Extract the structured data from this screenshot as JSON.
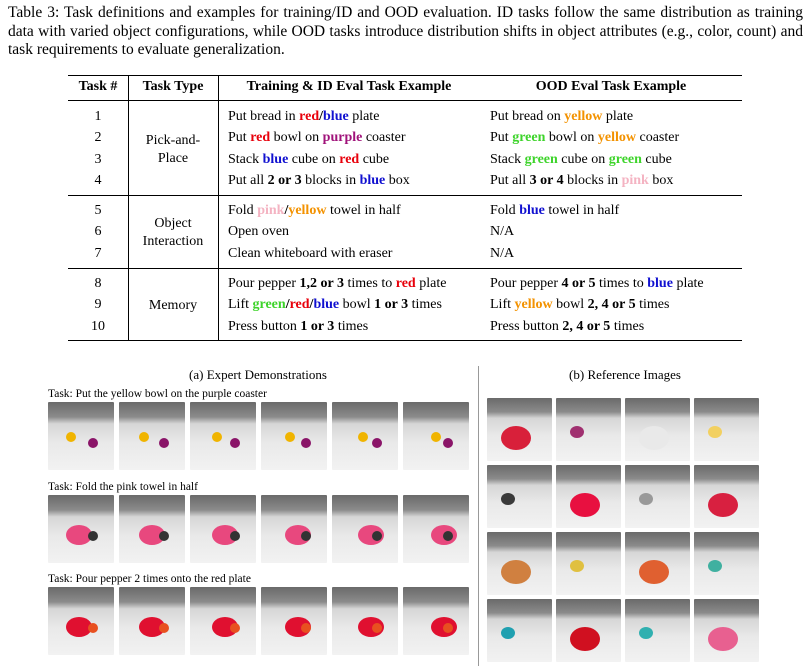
{
  "caption": "Table 3: Task definitions and examples for training/ID and OOD evaluation. ID tasks follow the same distribution as training data with varied object configurations, while OOD tasks introduce distribution shifts in object attributes (e.g., color, count) and task requirements to evaluate generalization.",
  "table": {
    "header": [
      "Task #",
      "Task Type",
      "Training & ID Eval Task Example",
      "OOD Eval Task Example"
    ],
    "groups": [
      {
        "type": "Pick-and-Place",
        "rows": [
          {
            "num": "1",
            "train": [
              {
                "text": "Put bread in "
              },
              {
                "text": "red",
                "color": "#e8000b",
                "bold": true
              },
              {
                "text": "/",
                "bold": true
              },
              {
                "text": "blue",
                "color": "#1010d0",
                "bold": true
              },
              {
                "text": " plate"
              }
            ],
            "ood": [
              {
                "text": "Put bread on "
              },
              {
                "text": "yellow",
                "color": "#f39200",
                "bold": true
              },
              {
                "text": " plate"
              }
            ]
          },
          {
            "num": "2",
            "train": [
              {
                "text": "Put "
              },
              {
                "text": "red",
                "color": "#e8000b",
                "bold": true
              },
              {
                "text": " bowl on "
              },
              {
                "text": "purple",
                "color": "#a0127a",
                "bold": true
              },
              {
                "text": " coaster"
              }
            ],
            "ood": [
              {
                "text": "Put "
              },
              {
                "text": "green",
                "color": "#3ed42b",
                "bold": true
              },
              {
                "text": " bowl on "
              },
              {
                "text": "yellow",
                "color": "#f39200",
                "bold": true
              },
              {
                "text": " coaster"
              }
            ]
          },
          {
            "num": "3",
            "train": [
              {
                "text": "Stack "
              },
              {
                "text": "blue",
                "color": "#1010d0",
                "bold": true
              },
              {
                "text": " cube on "
              },
              {
                "text": "red",
                "color": "#e8000b",
                "bold": true
              },
              {
                "text": " cube"
              }
            ],
            "ood": [
              {
                "text": "Stack "
              },
              {
                "text": "green",
                "color": "#3ed42b",
                "bold": true
              },
              {
                "text": " cube on "
              },
              {
                "text": "green",
                "color": "#3ed42b",
                "bold": true
              },
              {
                "text": " cube"
              }
            ]
          },
          {
            "num": "4",
            "train": [
              {
                "text": "Put all "
              },
              {
                "text": "2 or 3",
                "bold": true
              },
              {
                "text": " blocks in "
              },
              {
                "text": "blue",
                "color": "#1010d0",
                "bold": true
              },
              {
                "text": " box"
              }
            ],
            "ood": [
              {
                "text": "Put all "
              },
              {
                "text": "3 or 4",
                "bold": true
              },
              {
                "text": " blocks in "
              },
              {
                "text": "pink",
                "color": "#f4b3c2",
                "bold": true
              },
              {
                "text": " box"
              }
            ]
          }
        ]
      },
      {
        "type": "Object Interaction",
        "rows": [
          {
            "num": "5",
            "train": [
              {
                "text": "Fold "
              },
              {
                "text": "pink",
                "color": "#f4b3c2",
                "bold": true
              },
              {
                "text": "/",
                "bold": true
              },
              {
                "text": "yellow",
                "color": "#f39200",
                "bold": true
              },
              {
                "text": " towel in half"
              }
            ],
            "ood": [
              {
                "text": "Fold "
              },
              {
                "text": "blue",
                "color": "#1010d0",
                "bold": true
              },
              {
                "text": " towel in half"
              }
            ]
          },
          {
            "num": "6",
            "train": [
              {
                "text": "Open oven"
              }
            ],
            "ood": [
              {
                "text": "N/A"
              }
            ]
          },
          {
            "num": "7",
            "train": [
              {
                "text": "Clean whiteboard with eraser"
              }
            ],
            "ood": [
              {
                "text": "N/A"
              }
            ]
          }
        ]
      },
      {
        "type": "Memory",
        "rows": [
          {
            "num": "8",
            "train": [
              {
                "text": "Pour pepper "
              },
              {
                "text": "1,2 or 3",
                "bold": true
              },
              {
                "text": " times to "
              },
              {
                "text": "red",
                "color": "#e8000b",
                "bold": true
              },
              {
                "text": " plate"
              }
            ],
            "ood": [
              {
                "text": "Pour pepper "
              },
              {
                "text": "4 or 5",
                "bold": true
              },
              {
                "text": " times to "
              },
              {
                "text": "blue",
                "color": "#1010d0",
                "bold": true
              },
              {
                "text": " plate"
              }
            ]
          },
          {
            "num": "9",
            "train": [
              {
                "text": "Lift "
              },
              {
                "text": "green",
                "color": "#3ed42b",
                "bold": true
              },
              {
                "text": "/",
                "bold": true
              },
              {
                "text": "red",
                "color": "#e8000b",
                "bold": true
              },
              {
                "text": "/",
                "bold": true
              },
              {
                "text": "blue",
                "color": "#1010d0",
                "bold": true
              },
              {
                "text": " bowl "
              },
              {
                "text": "1 or 3",
                "bold": true
              },
              {
                "text": " times"
              }
            ],
            "ood": [
              {
                "text": "Lift "
              },
              {
                "text": "yellow",
                "color": "#f39200",
                "bold": true
              },
              {
                "text": " bowl "
              },
              {
                "text": "2, 4 or 5",
                "bold": true
              },
              {
                "text": " times"
              }
            ]
          },
          {
            "num": "10",
            "train": [
              {
                "text": "Press button "
              },
              {
                "text": "1 or 3",
                "bold": true
              },
              {
                "text": " times"
              }
            ],
            "ood": [
              {
                "text": "Press button "
              },
              {
                "text": "2, 4 or 5",
                "bold": true
              },
              {
                "text": " times"
              }
            ]
          }
        ]
      }
    ]
  },
  "figure": {
    "panel_a": {
      "title": "(a) Expert Demonstrations",
      "tasks": [
        "Task: Put the yellow bowl on the purple coaster",
        "Task: Fold the pink towel in half",
        "Task: Pour pepper 2 times onto the red plate"
      ]
    },
    "panel_b": {
      "title": "(b) Reference Images"
    }
  }
}
